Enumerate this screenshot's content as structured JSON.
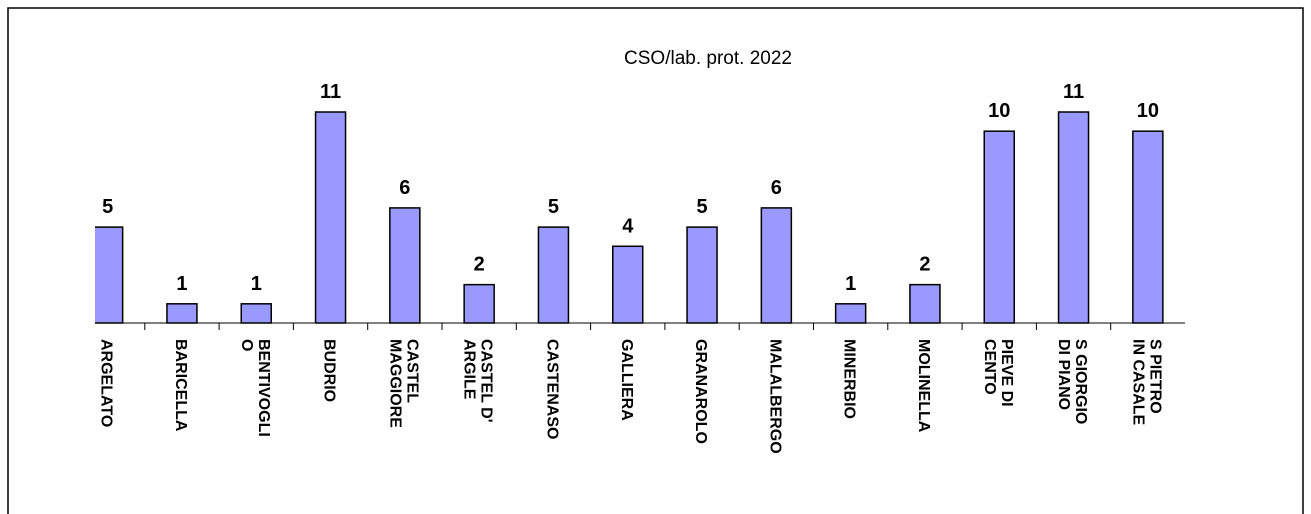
{
  "chart_data": {
    "type": "bar",
    "title": "CSO/lab. prot. 2022",
    "categories": [
      "ARGELATO",
      "BARICELLA",
      "BENTIVOGLIO",
      "BUDRIO",
      "CASTEL MAGGIORE",
      "CASTEL D' ARGILE",
      "CASTENASO",
      "GALLIERA",
      "GRANAROLO",
      "MALALBERGO",
      "MINERBIO",
      "MOLINELLA",
      "PIEVE DI CENTO",
      "S GIORGIO DI PIANO",
      "S PIETRO IN CASALE"
    ],
    "values": [
      5,
      1,
      1,
      11,
      6,
      2,
      5,
      4,
      5,
      6,
      1,
      2,
      10,
      11,
      10
    ],
    "color": "#9999ff"
  }
}
